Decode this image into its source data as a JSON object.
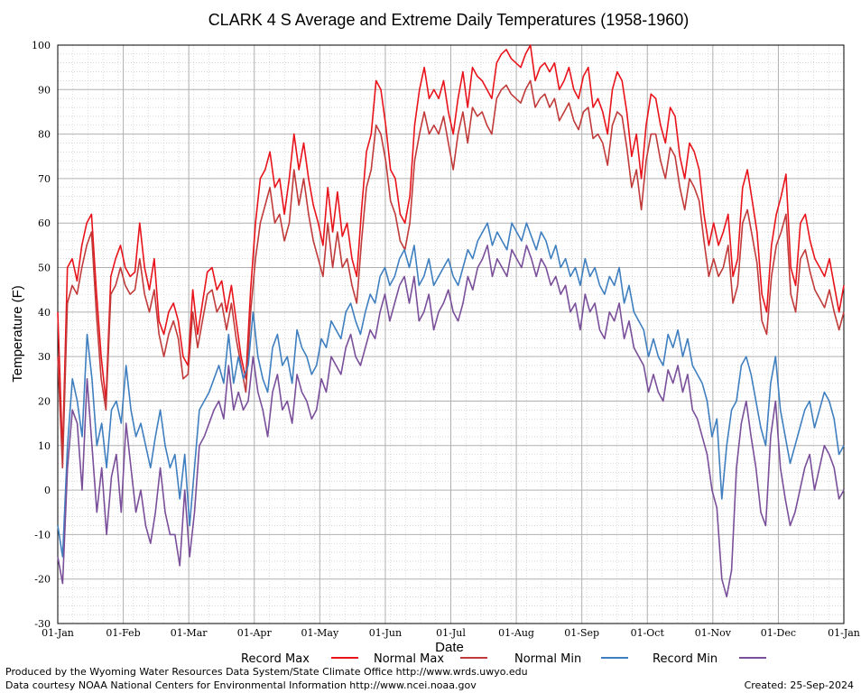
{
  "chart_data": {
    "type": "line",
    "title": "CLARK 4 S Average and Extreme Daily Temperatures (1958-1960)",
    "xlabel": "Date",
    "ylabel": "Temperature (F)",
    "ylim": [
      -30,
      100
    ],
    "y_ticks": [
      -30,
      -20,
      -10,
      0,
      10,
      20,
      30,
      40,
      50,
      60,
      70,
      80,
      90,
      100
    ],
    "x_ticks": [
      "01-Jan",
      "01-Feb",
      "01-Mar",
      "01-Apr",
      "01-May",
      "01-Jun",
      "01-Jul",
      "01-Aug",
      "01-Sep",
      "01-Oct",
      "01-Nov",
      "01-Dec",
      "01-Jan"
    ],
    "grid": true,
    "legend_position": "bottom",
    "series": [
      {
        "name": "Record Max",
        "color": "#e8131b",
        "values": [
          40,
          8,
          50,
          52,
          47,
          55,
          60,
          62,
          45,
          30,
          20,
          48,
          52,
          55,
          50,
          48,
          49,
          60,
          50,
          45,
          52,
          38,
          35,
          40,
          42,
          38,
          30,
          28,
          45,
          35,
          42,
          49,
          50,
          45,
          47,
          40,
          46,
          38,
          30,
          25,
          45,
          60,
          70,
          72,
          76,
          68,
          70,
          62,
          70,
          80,
          72,
          78,
          70,
          64,
          60,
          55,
          68,
          58,
          67,
          57,
          60,
          52,
          48,
          63,
          76,
          80,
          92,
          90,
          82,
          72,
          70,
          62,
          60,
          66,
          82,
          90,
          95,
          88,
          90,
          88,
          92,
          85,
          80,
          88,
          94,
          86,
          95,
          93,
          92,
          90,
          88,
          96,
          98,
          99,
          97,
          96,
          95,
          98,
          100,
          92,
          95,
          96,
          94,
          96,
          90,
          92,
          95,
          90,
          88,
          93,
          95,
          86,
          88,
          85,
          80,
          90,
          94,
          92,
          85,
          75,
          80,
          70,
          82,
          89,
          88,
          82,
          78,
          86,
          84,
          75,
          70,
          78,
          76,
          72,
          62,
          55,
          60,
          55,
          58,
          62,
          48,
          52,
          68,
          72,
          65,
          58,
          44,
          40,
          55,
          62,
          66,
          71,
          50,
          46,
          60,
          62,
          56,
          52,
          50,
          48,
          52,
          46,
          40,
          46
        ]
      },
      {
        "name": "Normal Max",
        "color": "#c03a3a",
        "values": [
          30,
          5,
          42,
          46,
          44,
          50,
          55,
          58,
          40,
          25,
          18,
          44,
          46,
          50,
          46,
          44,
          45,
          52,
          44,
          40,
          45,
          35,
          30,
          35,
          38,
          34,
          25,
          26,
          40,
          32,
          38,
          44,
          45,
          40,
          42,
          36,
          42,
          34,
          28,
          22,
          40,
          52,
          60,
          64,
          68,
          60,
          62,
          56,
          60,
          72,
          64,
          70,
          62,
          56,
          52,
          48,
          60,
          50,
          58,
          50,
          52,
          46,
          42,
          56,
          68,
          72,
          82,
          80,
          74,
          65,
          62,
          56,
          54,
          60,
          74,
          80,
          85,
          80,
          82,
          80,
          84,
          78,
          72,
          80,
          85,
          78,
          86,
          84,
          85,
          82,
          80,
          88,
          90,
          91,
          89,
          88,
          87,
          90,
          92,
          86,
          88,
          89,
          86,
          88,
          83,
          85,
          87,
          83,
          81,
          85,
          86,
          79,
          80,
          78,
          73,
          82,
          85,
          84,
          77,
          68,
          72,
          63,
          74,
          80,
          80,
          74,
          70,
          77,
          75,
          68,
          63,
          70,
          68,
          65,
          56,
          48,
          52,
          48,
          50,
          55,
          42,
          46,
          60,
          63,
          57,
          51,
          38,
          35,
          48,
          55,
          58,
          62,
          44,
          40,
          52,
          54,
          49,
          45,
          43,
          41,
          45,
          40,
          36,
          40
        ]
      },
      {
        "name": "Normal Min",
        "color": "#3f7fbf",
        "values": [
          -8,
          -15,
          10,
          25,
          20,
          12,
          35,
          25,
          10,
          15,
          5,
          18,
          20,
          15,
          28,
          18,
          12,
          15,
          10,
          5,
          12,
          18,
          10,
          5,
          8,
          -2,
          8,
          -8,
          5,
          18,
          20,
          22,
          25,
          28,
          24,
          35,
          24,
          30,
          25,
          28,
          40,
          30,
          25,
          22,
          32,
          35,
          28,
          30,
          24,
          36,
          32,
          30,
          26,
          28,
          34,
          32,
          38,
          36,
          34,
          40,
          42,
          38,
          35,
          40,
          44,
          42,
          48,
          50,
          46,
          48,
          52,
          54,
          50,
          55,
          46,
          48,
          52,
          46,
          48,
          50,
          52,
          48,
          46,
          50,
          54,
          52,
          56,
          58,
          60,
          55,
          58,
          56,
          54,
          60,
          58,
          56,
          60,
          57,
          54,
          58,
          56,
          52,
          55,
          50,
          52,
          48,
          50,
          46,
          52,
          48,
          50,
          46,
          44,
          48,
          46,
          50,
          42,
          46,
          40,
          38,
          36,
          30,
          34,
          30,
          28,
          35,
          32,
          36,
          30,
          34,
          28,
          26,
          24,
          20,
          12,
          16,
          -2,
          10,
          18,
          20,
          28,
          30,
          26,
          20,
          14,
          10,
          24,
          30,
          18,
          12,
          6,
          10,
          14,
          18,
          20,
          14,
          18,
          22,
          20,
          16,
          8,
          10
        ]
      },
      {
        "name": "Record Min",
        "color": "#7a4f9a",
        "values": [
          -15,
          -21,
          5,
          18,
          15,
          0,
          25,
          10,
          -5,
          5,
          -10,
          3,
          8,
          -5,
          15,
          5,
          -5,
          0,
          -8,
          -12,
          -5,
          5,
          -5,
          -10,
          -10,
          -17,
          0,
          -15,
          -5,
          10,
          12,
          15,
          18,
          20,
          16,
          28,
          18,
          22,
          18,
          20,
          30,
          22,
          18,
          12,
          22,
          26,
          18,
          20,
          15,
          26,
          22,
          20,
          16,
          18,
          25,
          22,
          30,
          28,
          26,
          32,
          35,
          30,
          28,
          32,
          36,
          34,
          40,
          44,
          38,
          42,
          46,
          48,
          42,
          48,
          38,
          40,
          44,
          36,
          40,
          42,
          45,
          40,
          38,
          42,
          48,
          45,
          50,
          52,
          55,
          48,
          52,
          50,
          48,
          54,
          52,
          50,
          55,
          52,
          48,
          52,
          50,
          46,
          48,
          44,
          46,
          40,
          42,
          36,
          44,
          40,
          42,
          36,
          34,
          40,
          38,
          42,
          34,
          38,
          32,
          30,
          28,
          22,
          26,
          22,
          20,
          27,
          24,
          28,
          22,
          26,
          18,
          16,
          12,
          8,
          0,
          -4,
          -20,
          -24,
          -18,
          5,
          15,
          20,
          12,
          5,
          -5,
          -8,
          12,
          20,
          5,
          -2,
          -8,
          -5,
          0,
          5,
          8,
          0,
          5,
          10,
          8,
          5,
          -2,
          0
        ]
      }
    ]
  },
  "legend": [
    {
      "label": "Record Max",
      "color": "#e8131b"
    },
    {
      "label": "Normal Max",
      "color": "#c03a3a"
    },
    {
      "label": "Normal Min",
      "color": "#3f7fbf"
    },
    {
      "label": "Record Min",
      "color": "#7a4f9a"
    }
  ],
  "footer": {
    "produced_by": "Produced by the Wyoming Water Resources Data System/State Climate Office http://www.wrds.uwyo.edu",
    "courtesy": "Data courtesy NOAA National Centers for Environmental Information http://www.ncei.noaa.gov",
    "created": "Created: 25-Sep-2024"
  }
}
